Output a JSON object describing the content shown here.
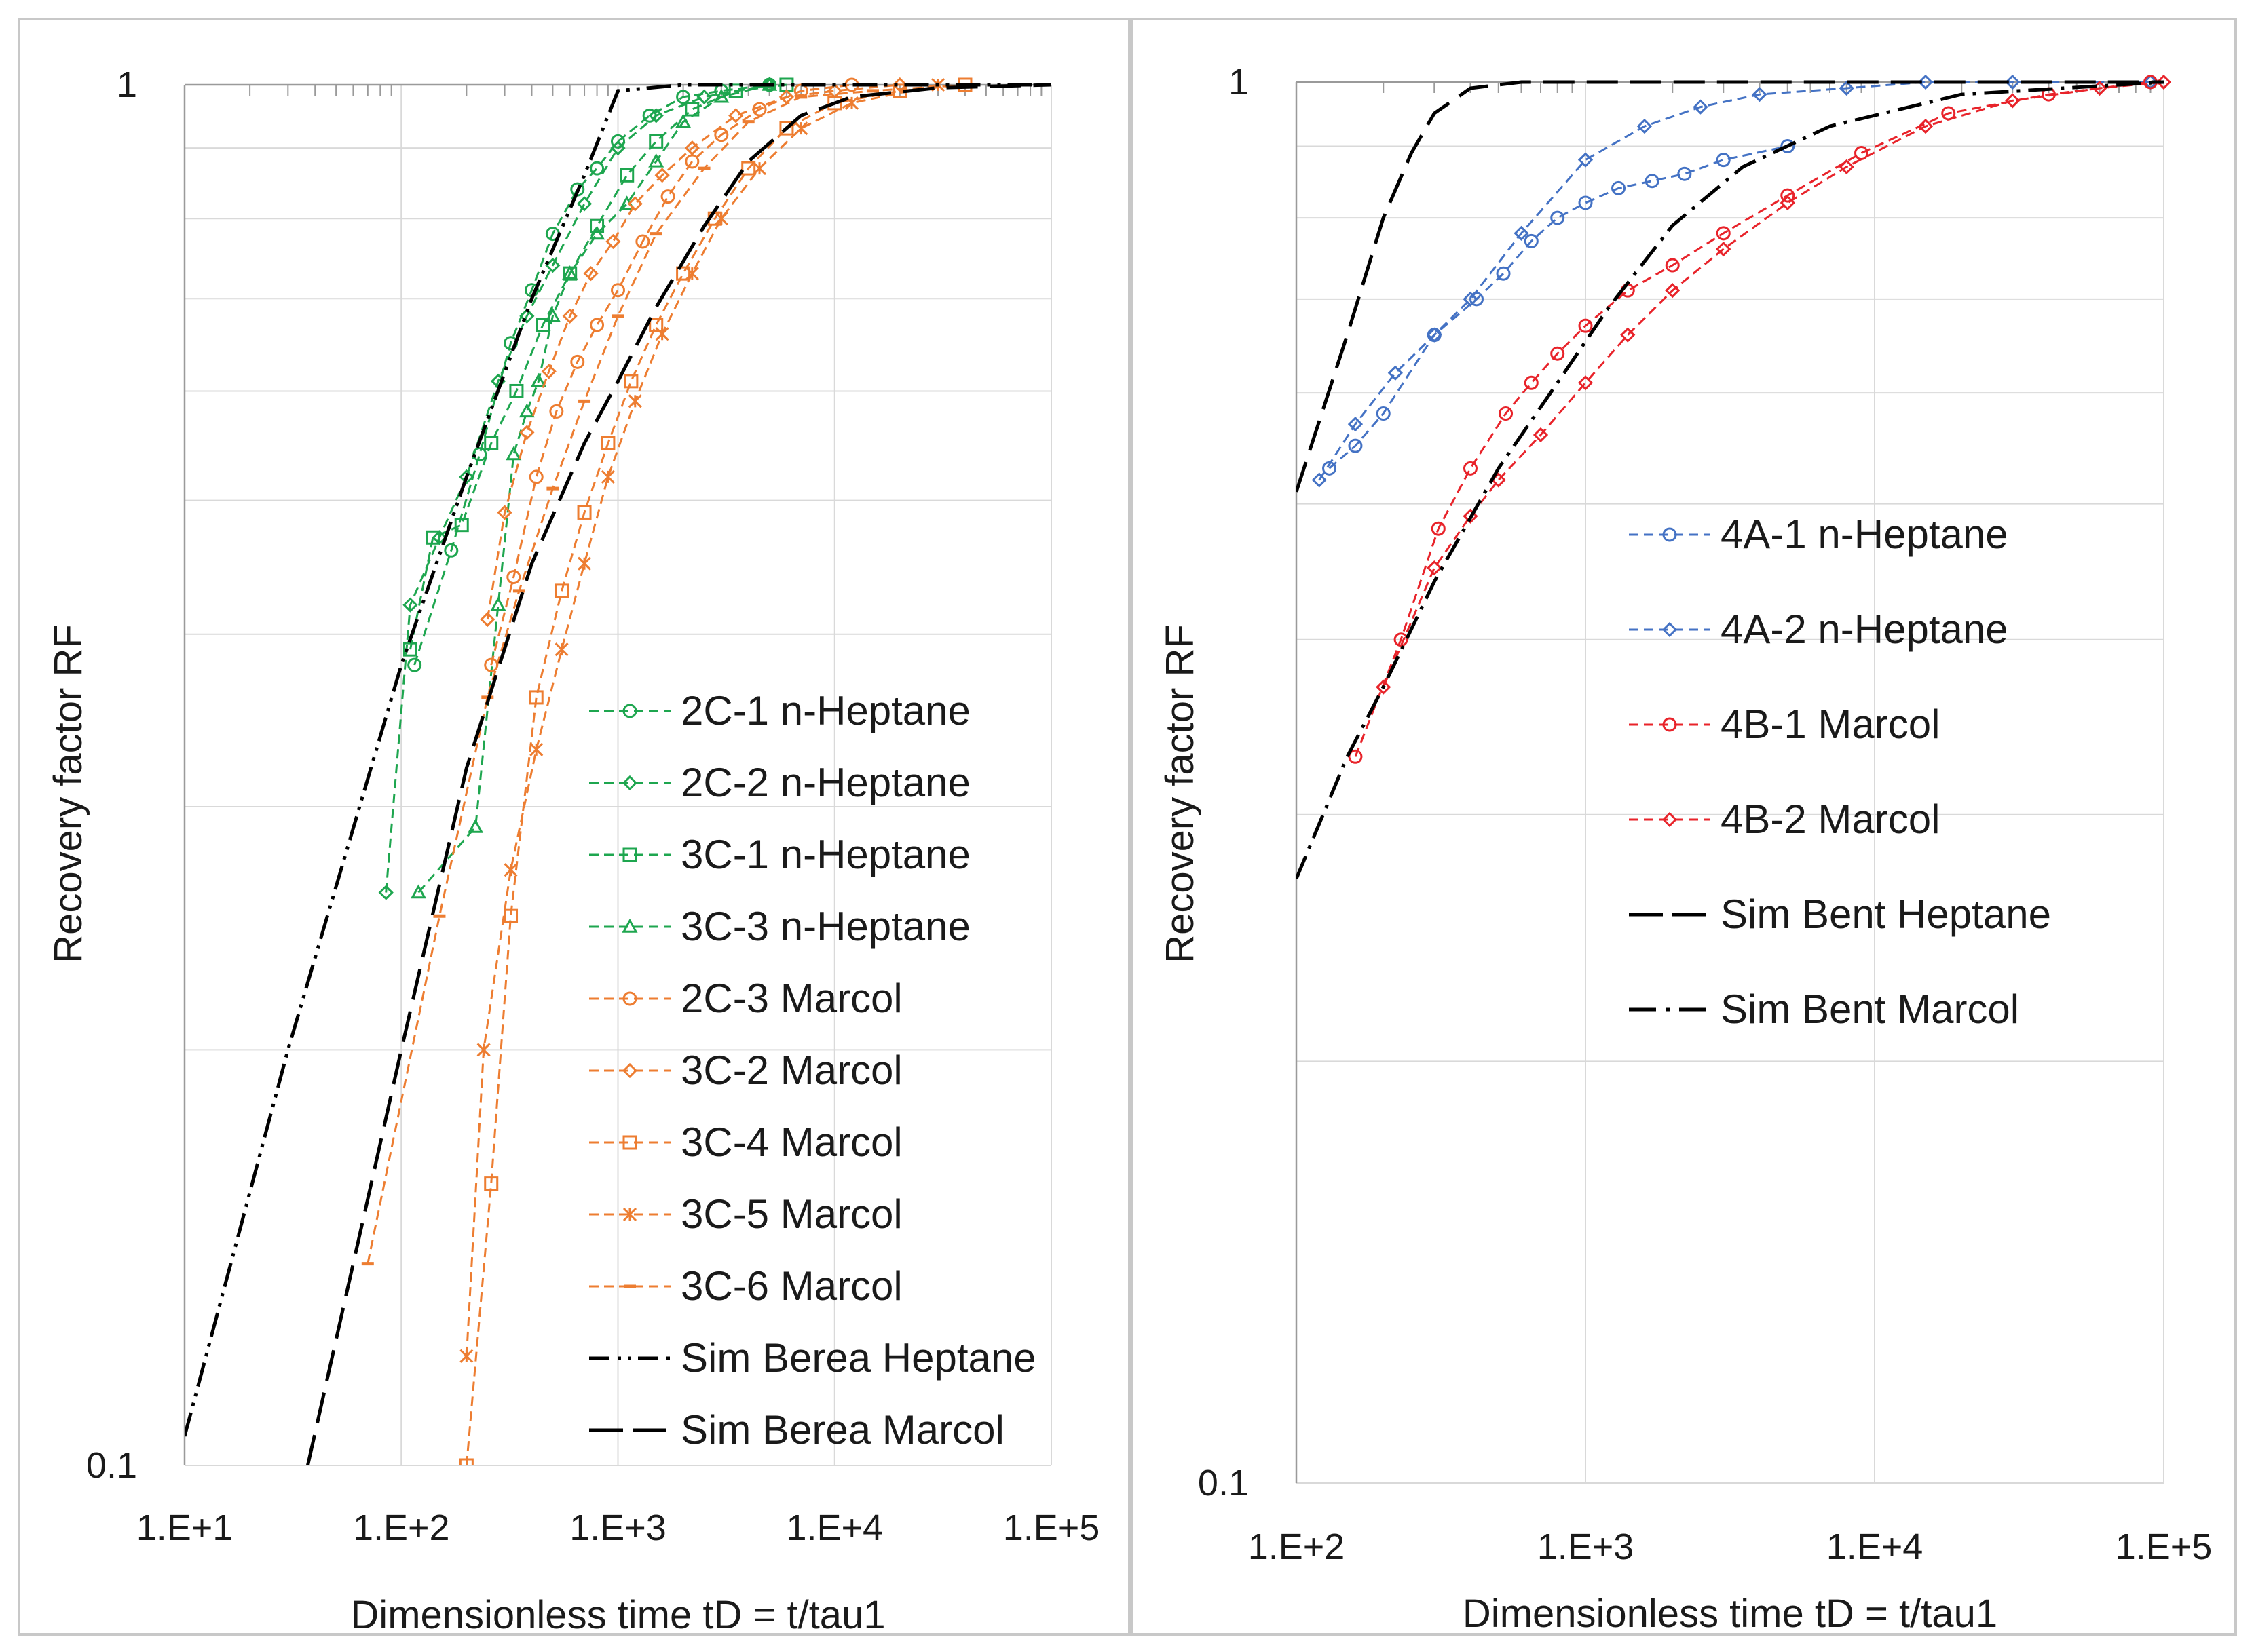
{
  "chart_data": [
    {
      "type": "line",
      "scale": "log-log",
      "xlabel": "Dimensionless time tD = t/tau1",
      "ylabel": "Recovery factor RF",
      "xlim": [
        10,
        100000
      ],
      "ylim": [
        0.1,
        1
      ],
      "x_tick_labels": [
        "1.E+1",
        "1.E+2",
        "1.E+3",
        "1.E+4",
        "1.E+5"
      ],
      "y_tick_labels": [
        "0.1",
        "1"
      ],
      "grid": true,
      "legend_position": "right-middle",
      "series": [
        {
          "name": "2C-1 n-Heptane",
          "color": "#1ea64f",
          "marker": "circle",
          "dash": "dashed",
          "x": [
            115,
            170,
            230,
            320,
            400,
            500,
            650,
            800,
            1000,
            1400,
            2000,
            3000,
            5000
          ],
          "y": [
            0.38,
            0.46,
            0.54,
            0.65,
            0.71,
            0.78,
            0.84,
            0.87,
            0.91,
            0.95,
            0.98,
            0.99,
            1.0
          ]
        },
        {
          "name": "2C-2 n-Heptane",
          "color": "#1ea64f",
          "marker": "diamond",
          "dash": "dashed",
          "x": [
            85,
            110,
            150,
            200,
            280,
            380,
            500,
            700,
            1000,
            1500,
            2500,
            5000
          ],
          "y": [
            0.26,
            0.42,
            0.47,
            0.52,
            0.61,
            0.68,
            0.74,
            0.82,
            0.9,
            0.95,
            0.98,
            1.0
          ]
        },
        {
          "name": "3C-1 n-Heptane",
          "color": "#1ea64f",
          "marker": "square",
          "dash": "dashed",
          "x": [
            110,
            140,
            190,
            260,
            340,
            450,
            600,
            800,
            1100,
            1500,
            2200,
            3500,
            6000
          ],
          "y": [
            0.39,
            0.47,
            0.48,
            0.55,
            0.6,
            0.67,
            0.73,
            0.79,
            0.86,
            0.91,
            0.96,
            0.99,
            1.0
          ]
        },
        {
          "name": "3C-3 n-Heptane",
          "color": "#1ea64f",
          "marker": "triangle",
          "dash": "dashed",
          "x": [
            120,
            220,
            280,
            330,
            380,
            430,
            500,
            600,
            800,
            1100,
            1500,
            2000,
            3000,
            5000
          ],
          "y": [
            0.26,
            0.29,
            0.42,
            0.54,
            0.58,
            0.61,
            0.68,
            0.73,
            0.78,
            0.82,
            0.88,
            0.94,
            0.98,
            1.0
          ]
        },
        {
          "name": "2C-3 Marcol",
          "color": "#ed7d31",
          "marker": "circle",
          "dash": "dashed",
          "x": [
            260,
            330,
            420,
            520,
            650,
            800,
            1000,
            1300,
            1700,
            2200,
            3000,
            4500,
            7000,
            12000
          ],
          "y": [
            0.38,
            0.44,
            0.52,
            0.58,
            0.63,
            0.67,
            0.71,
            0.77,
            0.83,
            0.88,
            0.92,
            0.96,
            0.99,
            1.0
          ]
        },
        {
          "name": "3C-2 Marcol",
          "color": "#ed7d31",
          "marker": "diamond",
          "dash": "dashed",
          "x": [
            250,
            300,
            380,
            480,
            600,
            750,
            950,
            1200,
            1600,
            2200,
            3500,
            6000,
            10000,
            20000
          ],
          "y": [
            0.41,
            0.49,
            0.56,
            0.62,
            0.68,
            0.73,
            0.77,
            0.82,
            0.86,
            0.9,
            0.95,
            0.98,
            0.99,
            1.0
          ]
        },
        {
          "name": "3C-4 Marcol",
          "color": "#ed7d31",
          "marker": "square",
          "dash": "dashed",
          "x": [
            200,
            260,
            320,
            420,
            550,
            700,
            900,
            1150,
            1500,
            2000,
            2800,
            4000,
            6000,
            10000,
            20000,
            40000
          ],
          "y": [
            0.1,
            0.16,
            0.25,
            0.36,
            0.43,
            0.49,
            0.55,
            0.61,
            0.67,
            0.73,
            0.8,
            0.87,
            0.93,
            0.97,
            0.99,
            1.0
          ]
        },
        {
          "name": "3C-5 Marcol",
          "color": "#ed7d31",
          "marker": "asterisk",
          "dash": "dashed",
          "x": [
            200,
            240,
            320,
            420,
            550,
            700,
            900,
            1200,
            1600,
            2200,
            3000,
            4500,
            7000,
            12000,
            30000
          ],
          "y": [
            0.12,
            0.2,
            0.27,
            0.33,
            0.39,
            0.45,
            0.52,
            0.59,
            0.66,
            0.73,
            0.8,
            0.87,
            0.93,
            0.97,
            1.0
          ]
        },
        {
          "name": "3C-6 Marcol",
          "color": "#ed7d31",
          "marker": "dash",
          "dash": "dashed",
          "x": [
            70,
            150,
            250,
            350,
            500,
            700,
            1000,
            1500,
            2500,
            4000,
            7000,
            15000,
            40000
          ],
          "y": [
            0.14,
            0.25,
            0.36,
            0.43,
            0.51,
            0.59,
            0.68,
            0.78,
            0.87,
            0.94,
            0.98,
            0.99,
            1.0
          ]
        },
        {
          "name": "Sim Berea Heptane",
          "color": "#000000",
          "marker": "none",
          "dash": "dash-dot-dot",
          "x": [
            10,
            30,
            100,
            200,
            400,
            700,
            1000,
            2000,
            100000
          ],
          "y": [
            0.105,
            0.2,
            0.38,
            0.52,
            0.7,
            0.86,
            0.99,
            1.0,
            1.0
          ]
        },
        {
          "name": "Sim Berea Marcol",
          "color": "#000000",
          "marker": "none",
          "dash": "long-dash",
          "x": [
            37,
            60,
            100,
            200,
            400,
            700,
            1000,
            1500,
            2500,
            4000,
            7000,
            12000,
            30000,
            100000
          ],
          "y": [
            0.1,
            0.14,
            0.2,
            0.32,
            0.45,
            0.55,
            0.61,
            0.69,
            0.79,
            0.88,
            0.95,
            0.98,
            0.995,
            1.0
          ]
        }
      ]
    },
    {
      "type": "line",
      "scale": "log-log",
      "xlabel": "Dimensionless time tD = t/tau1",
      "ylabel": "Recovery factor RF",
      "xlim": [
        100,
        100000
      ],
      "ylim": [
        0.1,
        1
      ],
      "x_tick_labels": [
        "1.E+2",
        "1.E+3",
        "1.E+4",
        "1.E+5"
      ],
      "y_tick_labels": [
        "0.1",
        "1"
      ],
      "grid": true,
      "legend_position": "center",
      "series": [
        {
          "name": "4A-1 n-Heptane",
          "color": "#4472c4",
          "marker": "circle",
          "dash": "dashed",
          "x": [
            130,
            160,
            200,
            300,
            420,
            520,
            650,
            800,
            1000,
            1300,
            1700,
            2200,
            3000,
            5000
          ],
          "y": [
            0.53,
            0.55,
            0.58,
            0.66,
            0.7,
            0.73,
            0.77,
            0.8,
            0.82,
            0.84,
            0.85,
            0.86,
            0.88,
            0.9
          ]
        },
        {
          "name": "4A-2 n-Heptane",
          "color": "#4472c4",
          "marker": "diamond",
          "dash": "dashed",
          "x": [
            120,
            160,
            220,
            300,
            400,
            600,
            1000,
            1600,
            2500,
            4000,
            8000,
            15000,
            30000,
            90000
          ],
          "y": [
            0.52,
            0.57,
            0.62,
            0.66,
            0.7,
            0.78,
            0.88,
            0.93,
            0.96,
            0.98,
            0.99,
            1.0,
            1.0,
            1.0
          ]
        },
        {
          "name": "4B-1 Marcol",
          "color": "#e8232a",
          "marker": "circle",
          "dash": "dashed",
          "x": [
            160,
            230,
            310,
            400,
            530,
            650,
            800,
            1000,
            1400,
            2000,
            3000,
            5000,
            9000,
            18000,
            40000,
            90000
          ],
          "y": [
            0.33,
            0.4,
            0.48,
            0.53,
            0.58,
            0.61,
            0.64,
            0.67,
            0.71,
            0.74,
            0.78,
            0.83,
            0.89,
            0.95,
            0.98,
            1.0
          ]
        },
        {
          "name": "4B-2 Marcol",
          "color": "#e8232a",
          "marker": "diamond",
          "dash": "dashed",
          "x": [
            200,
            300,
            400,
            500,
            700,
            1000,
            1400,
            2000,
            3000,
            5000,
            8000,
            15000,
            30000,
            60000,
            100000
          ],
          "y": [
            0.37,
            0.45,
            0.49,
            0.52,
            0.56,
            0.61,
            0.66,
            0.71,
            0.76,
            0.82,
            0.87,
            0.93,
            0.97,
            0.99,
            1.0
          ]
        },
        {
          "name": "Sim Bent Heptane",
          "color": "#000000",
          "marker": "none",
          "dash": "long-dash",
          "x": [
            100,
            150,
            200,
            250,
            300,
            400,
            600,
            1000,
            100000
          ],
          "y": [
            0.51,
            0.66,
            0.8,
            0.89,
            0.95,
            0.99,
            1.0,
            1.0,
            1.0
          ]
        },
        {
          "name": "Sim Bent Marcol",
          "color": "#000000",
          "marker": "none",
          "dash": "dash-dot",
          "x": [
            100,
            150,
            200,
            300,
            500,
            800,
            1200,
            2000,
            3500,
            7000,
            20000,
            100000
          ],
          "y": [
            0.27,
            0.33,
            0.37,
            0.44,
            0.53,
            0.61,
            0.69,
            0.79,
            0.87,
            0.93,
            0.98,
            1.0
          ]
        }
      ]
    }
  ]
}
